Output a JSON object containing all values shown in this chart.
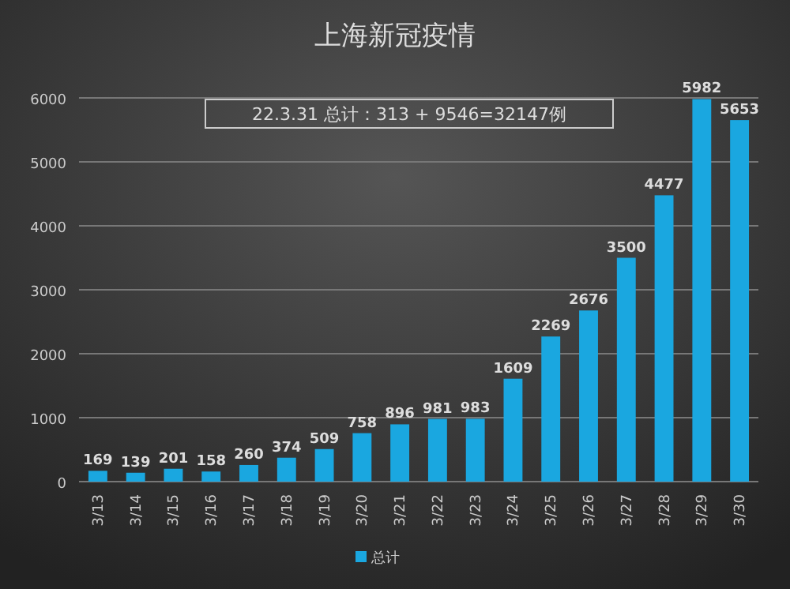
{
  "chart_data": {
    "type": "bar",
    "title": "上海新冠疫情",
    "categories": [
      "3/13",
      "3/14",
      "3/15",
      "3/16",
      "3/17",
      "3/18",
      "3/19",
      "3/20",
      "3/21",
      "3/22",
      "3/23",
      "3/24",
      "3/25",
      "3/26",
      "3/27",
      "3/28",
      "3/29",
      "3/30"
    ],
    "series": [
      {
        "name": "总计",
        "color": "#1aa7e0",
        "values": [
          169,
          139,
          201,
          158,
          260,
          374,
          509,
          758,
          896,
          981,
          983,
          1609,
          2269,
          2676,
          3500,
          4477,
          5982,
          5653
        ]
      }
    ],
    "ylim": [
      0,
      6000
    ],
    "yticks": [
      0,
      1000,
      2000,
      3000,
      4000,
      5000,
      6000
    ],
    "grid": "y",
    "legend": "bottom",
    "data_labels": true,
    "annotations": [
      "22.3.31 总计：313 + 9546=32147例"
    ]
  }
}
